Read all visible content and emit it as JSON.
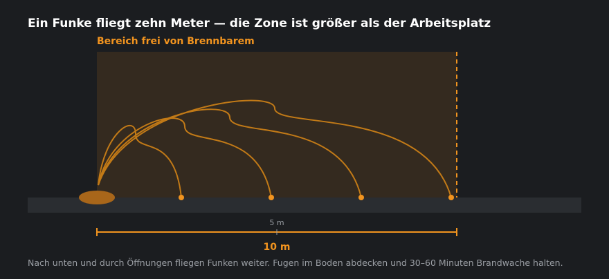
{
  "title": "Ein Funke fliegt zehn Meter — die Zone ist größer als der Arbeitsplatz",
  "zone_label": "Bereich frei von Brennbarem",
  "scale": {
    "mid_label": "5 m",
    "total_label": "10 m",
    "total_m": 10
  },
  "spark_landing_m": [
    2.5,
    5,
    7.5,
    10
  ],
  "caption": "Nach unten und durch Öffnungen fliegen Funken weiter. Fugen im Boden abdecken und 30–60 Minuten Brandwache halten.",
  "colors": {
    "background": "#1b1d20",
    "zone_fill": "#342a1f",
    "accent": "#f2941f",
    "trajectory": "#c27a17",
    "floor": "#2a2d31",
    "source": "#a8661a",
    "text_muted": "#9a9ea4"
  }
}
